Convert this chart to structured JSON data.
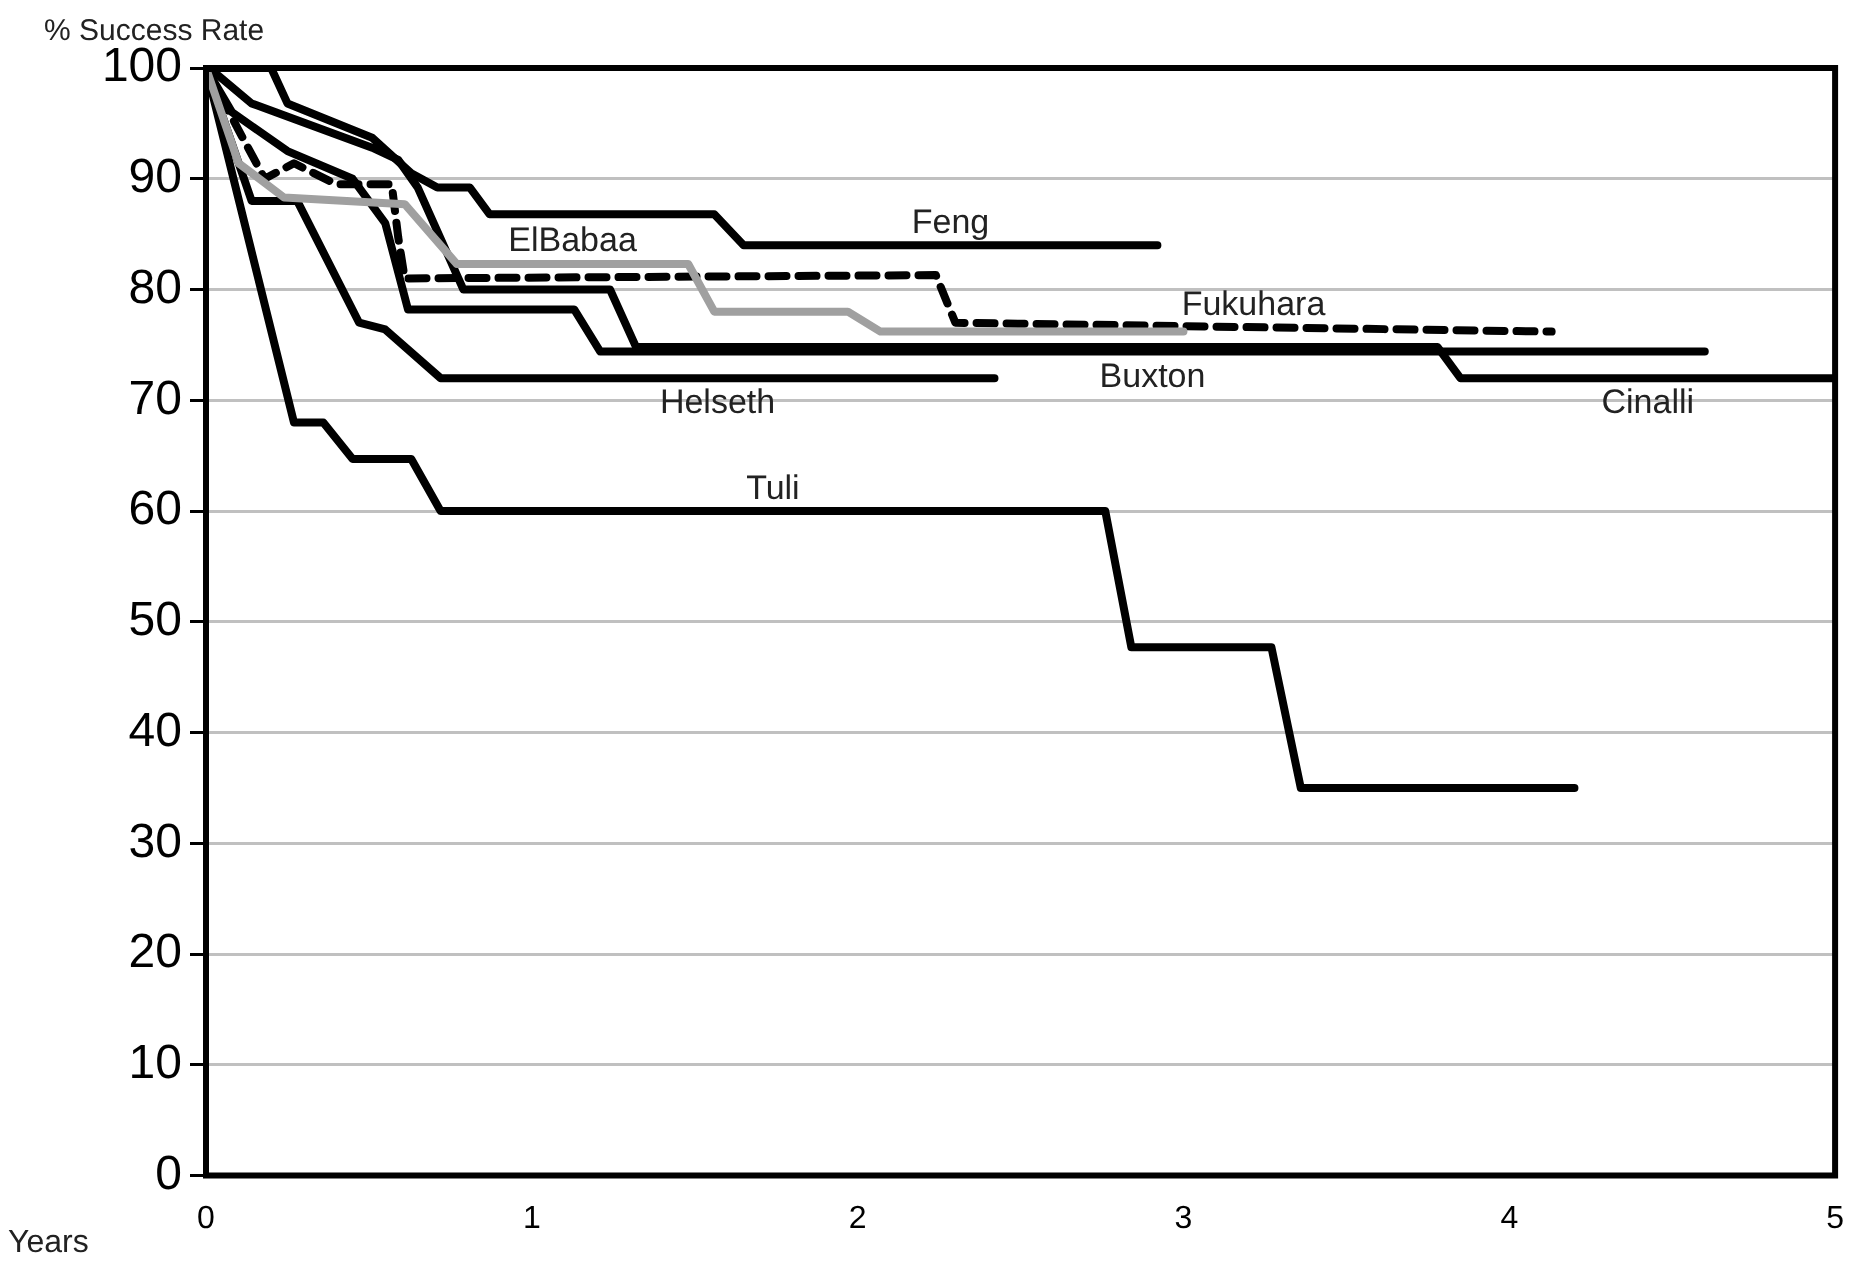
{
  "chart_data": {
    "type": "line",
    "ylabel": "% Success Rate",
    "xlabel": "Years",
    "xlim": [
      0,
      5
    ],
    "xticks": [
      0,
      1,
      2,
      3,
      4,
      5
    ],
    "ylim": [
      0,
      100
    ],
    "yticks": [
      0,
      10,
      20,
      30,
      40,
      50,
      60,
      70,
      80,
      90,
      100
    ],
    "grid": "y",
    "legend": false,
    "marker": "none",
    "series": [
      {
        "name": "Feng",
        "color": "#000000",
        "line_style": "solid",
        "x": [
          0,
          0.2,
          0.25,
          0.51,
          0.63,
          0.71,
          0.81,
          0.87,
          1.56,
          1.65,
          2.92
        ],
        "values": [
          100,
          100,
          96.8,
          93.7,
          90.5,
          89.2,
          89.2,
          86.8,
          86.8,
          84,
          84
        ]
      },
      {
        "name": "ElBabaa",
        "color": "#a0a0a0",
        "line_style": "solid",
        "x": [
          0,
          0.1,
          0.24,
          0.61,
          0.77,
          1.48,
          1.56,
          1.97,
          2.07,
          3.0
        ],
        "values": [
          100,
          91.4,
          88.3,
          87.7,
          82.3,
          82.3,
          78,
          78,
          76.2,
          76.2
        ]
      },
      {
        "name": "Fukuhara",
        "color": "#000000",
        "line_style": "dashed",
        "x": [
          0,
          0.1,
          0.18,
          0.27,
          0.4,
          0.57,
          0.59,
          0.61,
          2.24,
          2.3,
          4.13
        ],
        "values": [
          100,
          94.4,
          90,
          91.4,
          89.5,
          89.5,
          84.7,
          81,
          81.3,
          77,
          76.2
        ]
      },
      {
        "name": "Buxton",
        "color": "#000000",
        "line_style": "solid",
        "x": [
          0,
          0.08,
          0.25,
          0.45,
          0.55,
          0.62,
          1.13,
          1.21,
          4.6
        ],
        "values": [
          100,
          96,
          92.5,
          90,
          86,
          78.2,
          78.2,
          74.4,
          74.4
        ]
      },
      {
        "name": "Cinalli",
        "color": "#000000",
        "line_style": "solid",
        "x": [
          0,
          0.01,
          0.14,
          0.51,
          0.59,
          0.65,
          0.79,
          1.24,
          1.32,
          3.78,
          3.85,
          5
        ],
        "values": [
          100,
          100,
          96.8,
          92.8,
          91.7,
          89.2,
          80,
          80,
          74.8,
          74.8,
          72,
          72
        ]
      },
      {
        "name": "Helseth",
        "color": "#000000",
        "line_style": "solid",
        "x": [
          0,
          0.14,
          0.28,
          0.47,
          0.55,
          0.72,
          2.42
        ],
        "values": [
          100,
          88,
          88,
          77,
          76.4,
          72,
          72
        ]
      },
      {
        "name": "Tuli",
        "color": "#000000",
        "line_style": "solid",
        "x": [
          0,
          0.27,
          0.36,
          0.45,
          0.63,
          0.72,
          2.76,
          2.84,
          3.27,
          3.36,
          4.2
        ],
        "values": [
          100,
          68,
          68,
          64.7,
          64.7,
          60,
          60,
          47.7,
          47.7,
          35,
          35
        ]
      }
    ]
  }
}
